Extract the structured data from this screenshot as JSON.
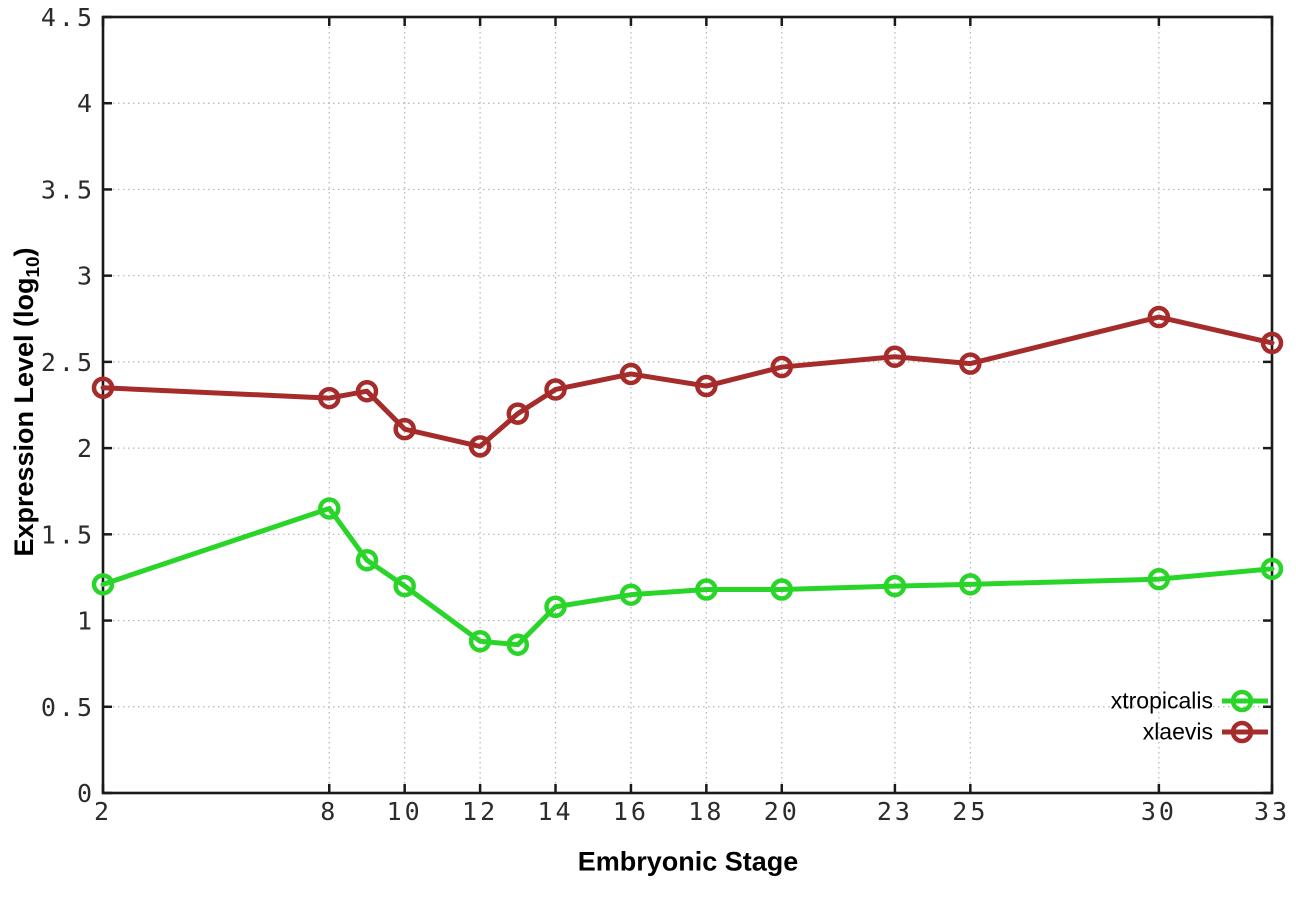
{
  "colors": {
    "background": "#ffffff",
    "axis": "#1a1a1a",
    "grid": "#b4b4b4",
    "tick_text": "#2b2b2b",
    "xtropicalis_green": "#2ad52a",
    "xlaevis_red": "#a62b2b"
  },
  "chart_data": {
    "type": "line",
    "title": "",
    "xlabel": "Embryonic Stage",
    "ylabel": {
      "prefix": "Expression Level (log",
      "sub": "10",
      "suffix": ")"
    },
    "xlim": [
      2,
      33
    ],
    "ylim": [
      0,
      4.5
    ],
    "grid": true,
    "legend_position": "inside bottom-right",
    "x_ticks": [
      2,
      8,
      10,
      12,
      14,
      16,
      18,
      20,
      23,
      25,
      30,
      33
    ],
    "x_tick_labels": [
      "2",
      "8",
      "10",
      "12",
      "14",
      "16",
      "18",
      "20",
      "23",
      "25",
      "30",
      "33"
    ],
    "y_ticks": [
      0,
      0.5,
      1,
      1.5,
      2,
      2.5,
      3,
      3.5,
      4,
      4.5
    ],
    "y_tick_labels": [
      "0",
      "0.5",
      "1",
      "1.5",
      "2",
      "2.5",
      "3",
      "3.5",
      "4",
      "4.5"
    ],
    "x": [
      2,
      8,
      9,
      10,
      12,
      13,
      14,
      16,
      18,
      20,
      23,
      25,
      30,
      33
    ],
    "series": [
      {
        "name": "xtropicalis",
        "color": "#2ad52a",
        "marker": "open-circle",
        "values": [
          1.21,
          1.65,
          1.35,
          1.2,
          0.88,
          0.86,
          1.08,
          1.15,
          1.18,
          1.18,
          1.2,
          1.21,
          1.24,
          1.3
        ]
      },
      {
        "name": "xlaevis",
        "color": "#a62b2b",
        "marker": "open-circle",
        "values": [
          2.35,
          2.29,
          2.33,
          2.11,
          2.01,
          2.2,
          2.34,
          2.43,
          2.36,
          2.47,
          2.53,
          2.49,
          2.76,
          2.61
        ]
      }
    ]
  }
}
